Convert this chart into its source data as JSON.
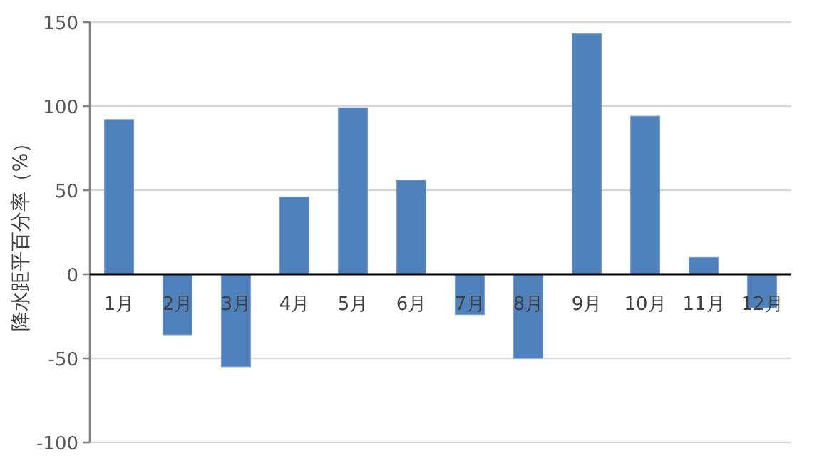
{
  "chart_data": {
    "type": "bar",
    "ylabel": "降水距平百分率（%）",
    "categories": [
      "1月",
      "2月",
      "3月",
      "4月",
      "5月",
      "6月",
      "7月",
      "8月",
      "9月",
      "10月",
      "11月",
      "12月"
    ],
    "values": [
      92,
      -36,
      -55,
      46,
      99,
      56,
      -24,
      -50,
      143,
      94,
      10,
      -20
    ],
    "color": "#4f81bd",
    "ylim": [
      -100,
      150
    ],
    "yticks": [
      -100,
      -50,
      0,
      50,
      100,
      150
    ],
    "grid": "y"
  }
}
